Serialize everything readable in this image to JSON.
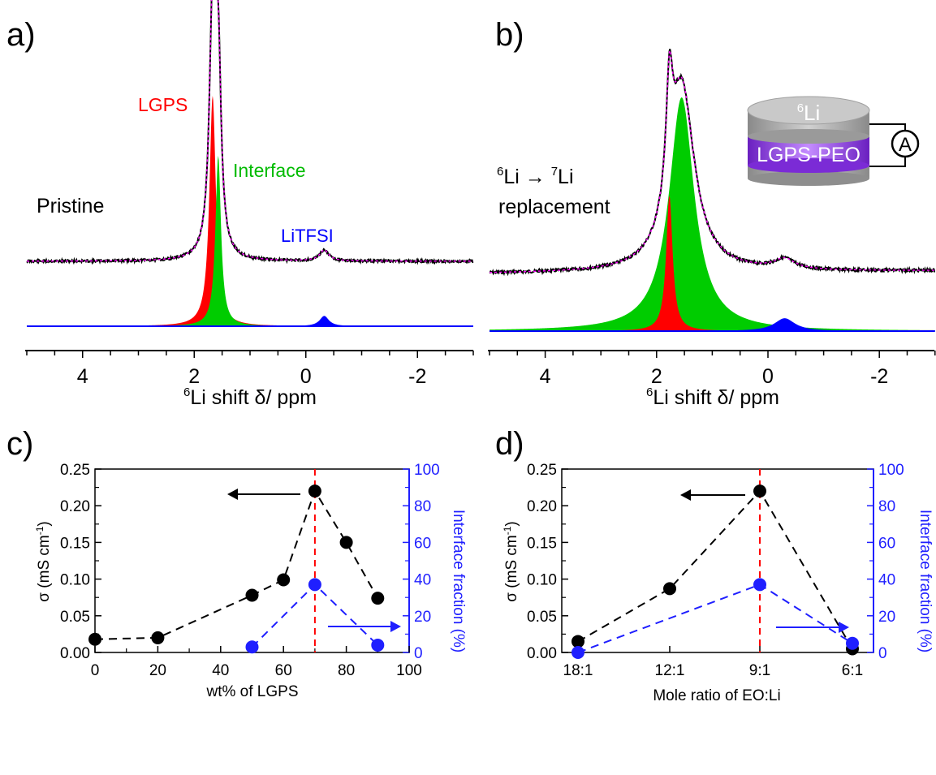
{
  "colors": {
    "lgps": "#ff0000",
    "interface": "#00cc00",
    "litfsi": "#0000ff",
    "exp": "#000000",
    "fit": "#ff00ff",
    "marker_line": "#ff0000",
    "sigma": "#000000",
    "fraction": "#1f1fff",
    "cell_gray": "#a8a8a8",
    "cell_purple": "#8a2be2"
  },
  "panel_a": {
    "label": "a)",
    "legend_lgps": "LGPS",
    "legend_interface": "Interface",
    "legend_litfsi": "LiTFSI",
    "note": "Pristine",
    "xlabel_sup": "6",
    "xlabel_rest": "Li shift δ/ ppm",
    "xticks": [
      "4",
      "2",
      "0",
      "-2"
    ]
  },
  "panel_b": {
    "label": "b)",
    "note_line1_sup1": "6",
    "note_line1_mid": "Li → ",
    "note_line1_sup2": "7",
    "note_line1_end": "Li",
    "note_line2": "replacement",
    "xlabel_sup": "6",
    "xlabel_rest": "Li shift δ/ ppm",
    "xticks": [
      "4",
      "2",
      "0",
      "-2"
    ],
    "cell_top_sup": "6",
    "cell_top": "Li",
    "cell_mid": "LGPS-PEO",
    "ammeter": "A"
  },
  "panel_c": {
    "label": "c)",
    "xlabel": "wt% of LGPS",
    "ylabel_left": "σ (mS cm",
    "ylabel_left_sup": "-1",
    "ylabel_left_end": ")",
    "ylabel_right": "Interface fraction (%)",
    "xticks": [
      "0",
      "20",
      "40",
      "60",
      "80",
      "100"
    ],
    "yticks_left": [
      "0.00",
      "0.05",
      "0.10",
      "0.15",
      "0.20",
      "0.25"
    ],
    "yticks_right": [
      "0",
      "20",
      "40",
      "60",
      "80",
      "100"
    ]
  },
  "panel_d": {
    "label": "d)",
    "xlabel": "Mole ratio of EO:Li",
    "ylabel_left": "σ (mS cm",
    "ylabel_left_sup": "-1",
    "ylabel_left_end": ")",
    "ylabel_right": "Interface fraction (%)",
    "xticks": [
      "18:1",
      "12:1",
      "9:1",
      "6:1"
    ],
    "yticks_left": [
      "0.00",
      "0.05",
      "0.10",
      "0.15",
      "0.20",
      "0.25"
    ],
    "yticks_right": [
      "0",
      "20",
      "40",
      "60",
      "80",
      "100"
    ]
  },
  "chart_data": [
    {
      "type": "area",
      "panel": "a",
      "xlabel": "6Li shift δ/ ppm",
      "xlim": [
        5,
        -3
      ],
      "x_reversed": true,
      "series": [
        {
          "name": "LGPS",
          "peak_center_ppm": 1.67,
          "peak_height": 1.0,
          "fwhm_ppm": 0.14
        },
        {
          "name": "Interface",
          "peak_center_ppm": 1.57,
          "peak_height": 0.74,
          "fwhm_ppm": 0.12
        },
        {
          "name": "LiTFSI",
          "peak_center_ppm": -0.33,
          "peak_height": 0.045,
          "fwhm_ppm": 0.2
        }
      ],
      "annotations": [
        "Pristine"
      ]
    },
    {
      "type": "area",
      "panel": "b",
      "xlabel": "6Li shift δ/ ppm",
      "xlim": [
        5,
        -3
      ],
      "x_reversed": true,
      "series": [
        {
          "name": "LGPS",
          "peak_center_ppm": 1.77,
          "peak_height": 0.58,
          "fwhm_ppm": 0.14
        },
        {
          "name": "Interface",
          "peak_center_ppm": 1.55,
          "peak_height": 1.0,
          "fwhm_ppm": 0.55
        },
        {
          "name": "LiTFSI",
          "peak_center_ppm": -0.3,
          "peak_height": 0.055,
          "fwhm_ppm": 0.45
        }
      ],
      "annotations": [
        "6Li → 7Li replacement"
      ]
    },
    {
      "type": "scatter",
      "panel": "c",
      "xlabel": "wt% of LGPS",
      "ylabel": "σ (mS cm-1)",
      "ylabel_right": "Interface fraction (%)",
      "xlim": [
        0,
        100
      ],
      "ylim": [
        0,
        0.25
      ],
      "ylim_right": [
        0,
        100
      ],
      "series": [
        {
          "axis": "left",
          "x": [
            0,
            20,
            50,
            60,
            70,
            80,
            90
          ],
          "y": [
            0.018,
            0.02,
            0.078,
            0.099,
            0.22,
            0.15,
            0.074
          ]
        },
        {
          "axis": "right",
          "x": [
            50,
            70,
            90
          ],
          "y": [
            3,
            37,
            4
          ]
        }
      ],
      "vline_x": 70
    },
    {
      "type": "scatter",
      "panel": "d",
      "xlabel": "Mole ratio of EO:Li",
      "ylabel": "σ (mS cm-1)",
      "ylabel_right": "Interface fraction (%)",
      "categories": [
        "18:1",
        "12:1",
        "9:1",
        "6:1"
      ],
      "ylim": [
        0,
        0.25
      ],
      "ylim_right": [
        0,
        100
      ],
      "series": [
        {
          "axis": "left",
          "values": [
            0.015,
            0.087,
            0.22,
            0.005
          ]
        },
        {
          "axis": "right",
          "values": [
            0,
            null,
            37,
            5
          ]
        }
      ],
      "vline_category": "9:1"
    }
  ]
}
